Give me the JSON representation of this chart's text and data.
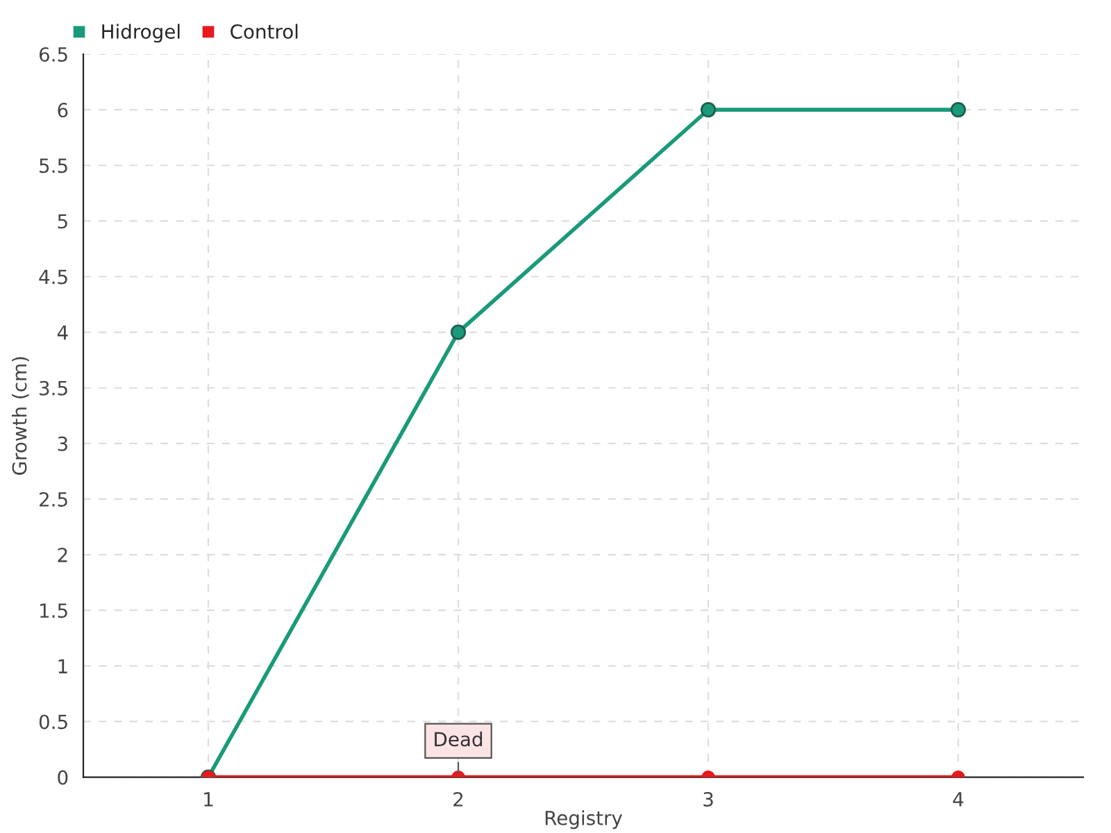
{
  "chart_data": {
    "type": "line",
    "xlabel": "Registry",
    "ylabel": "Growth (cm)",
    "x": [
      1,
      2,
      3,
      4
    ],
    "series": [
      {
        "name": "Hidrogel",
        "color": "#1a9a7a",
        "values": [
          0,
          4,
          6,
          6
        ]
      },
      {
        "name": "Control",
        "color": "#e8191e",
        "values": [
          0,
          0,
          0,
          0
        ]
      }
    ],
    "xlim": [
      0.5,
      4.5
    ],
    "xticks": [
      1,
      2,
      3,
      4
    ],
    "ylim": [
      0,
      6.5
    ],
    "yticks": [
      0,
      0.5,
      1,
      1.5,
      2,
      2.5,
      3,
      3.5,
      4,
      4.5,
      5,
      5.5,
      6,
      6.5
    ],
    "annotations": [
      {
        "text": "Dead",
        "x": 2,
        "y": 0
      }
    ],
    "grid": true,
    "legend": "top left",
    "marker": "circle",
    "line_style": "solid"
  }
}
